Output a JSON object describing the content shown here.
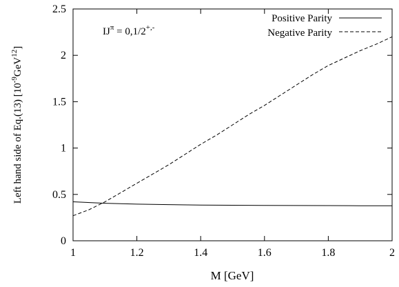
{
  "chart_data": {
    "type": "line",
    "xlabel": "M [GeV]",
    "ylabel": {
      "main": "Left hand side of Eq.(13) [10",
      "exp1": "-9",
      "mid": "GeV",
      "exp2": "12",
      "end": "]"
    },
    "annotation": {
      "base": "IJ",
      "sup1": "π",
      "eq": " = 0,1/2",
      "sup2": "+,-"
    },
    "xlim": [
      1,
      2
    ],
    "ylim": [
      0,
      2.5
    ],
    "xticks": [
      1,
      1.2,
      1.4,
      1.6,
      1.8,
      2
    ],
    "xtick_labels": [
      "1",
      "1.2",
      "1.4",
      "1.6",
      "1.8",
      "2"
    ],
    "yticks": [
      0,
      0.5,
      1,
      1.5,
      2,
      2.5
    ],
    "ytick_labels": [
      "0",
      "0.5",
      "1",
      "1.5",
      "2",
      "2.5"
    ],
    "grid": false,
    "legend_position": "top-right",
    "series": [
      {
        "name": "Positive Parity",
        "style": "solid",
        "color": "#000000",
        "x": [
          1.0,
          1.1,
          1.2,
          1.3,
          1.4,
          1.5,
          1.6,
          1.7,
          1.8,
          1.9,
          2.0
        ],
        "y": [
          0.42,
          0.405,
          0.395,
          0.39,
          0.385,
          0.383,
          0.381,
          0.38,
          0.379,
          0.378,
          0.378
        ]
      },
      {
        "name": "Negative Parity",
        "style": "dashed",
        "color": "#000000",
        "x": [
          1.0,
          1.05,
          1.1,
          1.15,
          1.2,
          1.25,
          1.3,
          1.35,
          1.4,
          1.45,
          1.5,
          1.55,
          1.6,
          1.65,
          1.7,
          1.75,
          1.8,
          1.85,
          1.9,
          1.95,
          2.0
        ],
        "y": [
          0.27,
          0.335,
          0.42,
          0.52,
          0.62,
          0.72,
          0.82,
          0.93,
          1.04,
          1.14,
          1.25,
          1.36,
          1.46,
          1.57,
          1.68,
          1.79,
          1.89,
          1.97,
          2.05,
          2.12,
          2.2
        ]
      }
    ]
  }
}
